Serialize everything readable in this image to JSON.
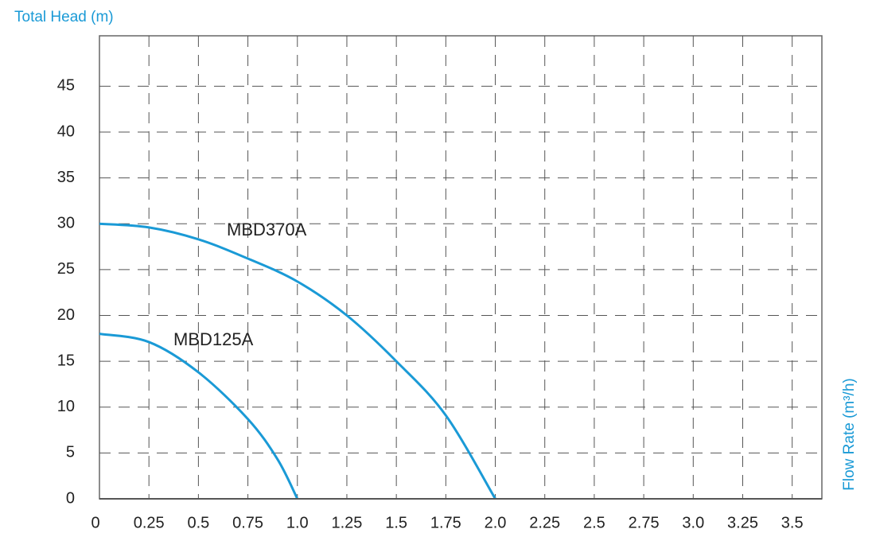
{
  "chart_data": {
    "type": "line",
    "title": "Total Head (m)",
    "x_label": "Flow Rate (m³/h)",
    "series": [
      {
        "name": "MBD370A",
        "color": "#1a9ad6",
        "x": [
          0,
          0.25,
          0.5,
          0.75,
          1.0,
          1.25,
          1.5,
          1.75,
          2.0
        ],
        "values": [
          30,
          29.6,
          28.3,
          26.2,
          23.7,
          20,
          15,
          9.1,
          0
        ]
      },
      {
        "name": "MBD125A",
        "color": "#1a9ad6",
        "x": [
          0,
          0.25,
          0.5,
          0.75,
          0.9,
          1.0
        ],
        "values": [
          18,
          17.1,
          13.8,
          8.7,
          4.3,
          0
        ]
      }
    ],
    "xlim": [
      0,
      3.65
    ],
    "ylim": [
      0,
      50.5
    ],
    "xticks": [
      0,
      0.25,
      0.5,
      0.75,
      {
        "value": 1,
        "label": "1.0"
      },
      1.25,
      1.5,
      1.75,
      {
        "value": 2,
        "label": "2.0"
      },
      2.25,
      2.5,
      2.75,
      {
        "value": 3,
        "label": "3.0"
      },
      3.25,
      3.5
    ],
    "yticks": [
      0,
      5,
      10,
      15,
      20,
      25,
      30,
      35,
      40,
      45
    ],
    "grid": true
  }
}
